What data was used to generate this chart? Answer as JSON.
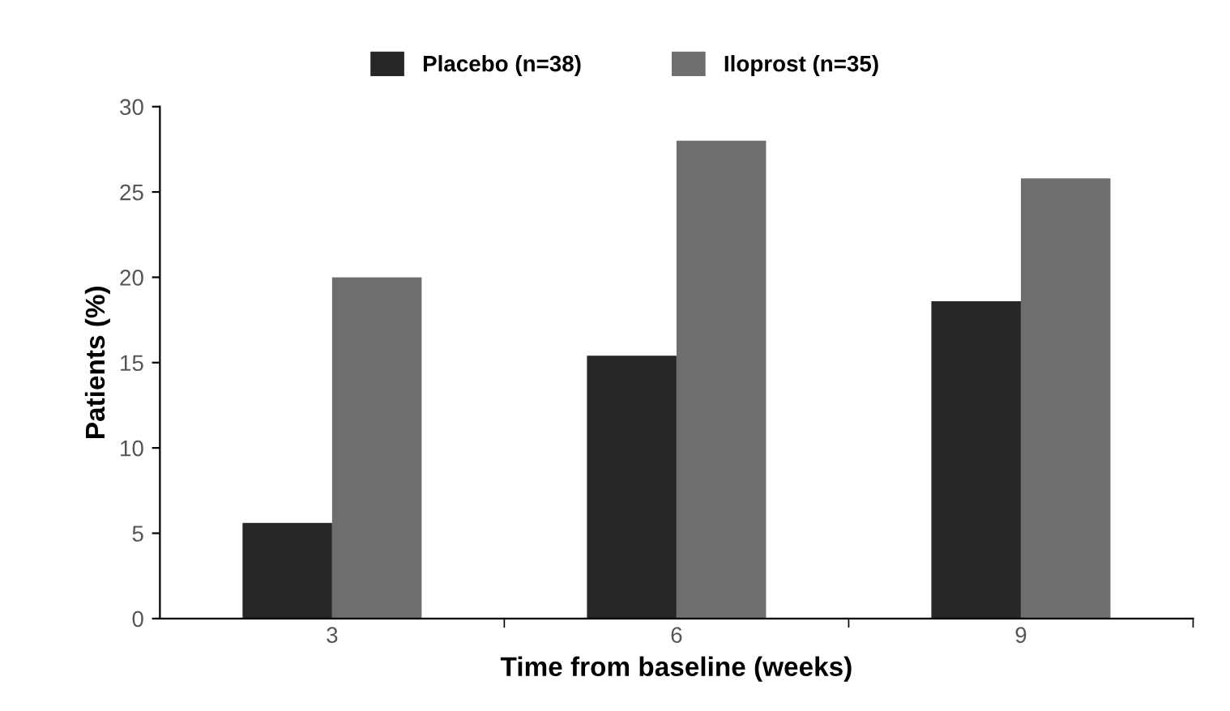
{
  "chart_data": {
    "type": "bar",
    "xlabel": "Time from baseline (weeks)",
    "ylabel": "Patients (%)",
    "categories": [
      "3",
      "6",
      "9"
    ],
    "series": [
      {
        "name": "Placebo (n=38)",
        "color": "#262626",
        "values": [
          5.6,
          15.4,
          18.6
        ]
      },
      {
        "name": "Iloprost (n=35)",
        "color": "#6e6e6e",
        "values": [
          20.0,
          28.0,
          25.8
        ]
      }
    ],
    "ylim": [
      0,
      30
    ],
    "yticks": [
      0,
      5,
      10,
      15,
      20,
      25,
      30
    ],
    "grid": false,
    "legend": "top"
  }
}
